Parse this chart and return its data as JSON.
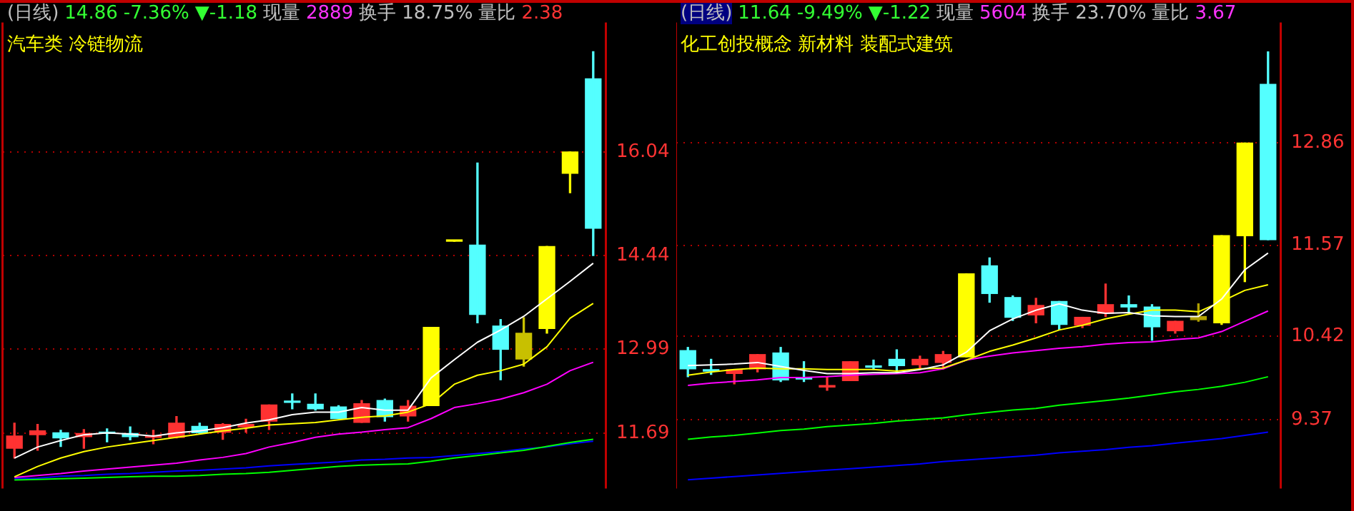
{
  "chart_data": [
    {
      "type": "candlestick",
      "title": "(日线)",
      "subtitle": "汽车类 冷链物流",
      "annotations": [
        "14.86",
        "-7.36%",
        "▼-1.18",
        "现量",
        "2889",
        "换手",
        "18.75%",
        "量比",
        "2.38"
      ],
      "categories": [
        null,
        null,
        null,
        null,
        null,
        null,
        null,
        null,
        null,
        null,
        null,
        null,
        null,
        null,
        null,
        null,
        null,
        null,
        null,
        null,
        null,
        null,
        null,
        null,
        null,
        null
      ],
      "ohlc": [
        [
          11.46,
          11.85,
          11.31,
          11.65
        ],
        [
          11.67,
          11.83,
          11.43,
          11.73
        ],
        [
          11.7,
          11.74,
          11.49,
          11.62
        ],
        [
          11.64,
          11.75,
          11.46,
          11.69
        ],
        [
          11.7,
          11.76,
          11.56,
          11.69
        ],
        [
          11.69,
          11.79,
          11.59,
          11.64
        ],
        [
          11.63,
          11.74,
          11.53,
          11.65
        ],
        [
          11.63,
          11.95,
          11.62,
          11.85
        ],
        [
          11.8,
          11.85,
          11.68,
          11.7
        ],
        [
          11.71,
          11.84,
          11.6,
          11.83
        ],
        [
          11.79,
          11.91,
          11.71,
          11.83
        ],
        [
          11.88,
          12.13,
          11.75,
          12.13
        ],
        [
          12.19,
          12.3,
          12.07,
          12.17
        ],
        [
          12.14,
          12.3,
          12.05,
          12.07
        ],
        [
          12.1,
          12.12,
          11.92,
          11.92
        ],
        [
          11.86,
          12.2,
          11.86,
          12.15
        ],
        [
          12.2,
          12.22,
          11.88,
          11.95
        ],
        [
          11.96,
          12.2,
          11.88,
          12.11
        ],
        [
          12.12,
          13.33,
          12.12,
          13.33
        ],
        [
          14.66,
          14.66,
          14.66,
          14.66
        ],
        [
          14.6,
          15.87,
          13.4,
          13.53
        ],
        [
          13.35,
          13.45,
          12.52,
          12.99
        ],
        [
          12.84,
          13.48,
          12.73,
          13.24
        ],
        [
          13.31,
          14.58,
          13.24,
          14.58
        ],
        [
          15.71,
          16.04,
          15.41,
          16.04
        ],
        [
          17.17,
          17.59,
          14.44,
          14.86
        ]
      ],
      "colors": [
        "#ff3232",
        "#ff3232",
        "#54ffff",
        "#ff3232",
        "#54ffff",
        "#54ffff",
        "#ff3232",
        "#ff3232",
        "#54ffff",
        "#ff3232",
        "#ff3232",
        "#ff3232",
        "#54ffff",
        "#54ffff",
        "#54ffff",
        "#ff3232",
        "#54ffff",
        "#ff3232",
        "#ffff00",
        "#ffff00",
        "#54ffff",
        "#54ffff",
        "#c8c000",
        "#ffff00",
        "#ffff00",
        "#54ffff"
      ],
      "series": [
        {
          "type": "line",
          "color": "#ffffff",
          "values": [
            11.31,
            11.48,
            11.58,
            11.67,
            11.7,
            11.68,
            11.65,
            11.7,
            11.73,
            11.78,
            11.85,
            11.9,
            11.98,
            12.02,
            12.02,
            12.09,
            12.05,
            12.05,
            12.55,
            12.83,
            13.1,
            13.29,
            13.5,
            13.77,
            14.04,
            14.32
          ]
        },
        {
          "type": "line",
          "color": "#ffff00",
          "values": [
            11.02,
            11.18,
            11.31,
            11.41,
            11.48,
            11.53,
            11.58,
            11.63,
            11.68,
            11.73,
            11.77,
            11.82,
            11.84,
            11.86,
            11.9,
            11.94,
            11.96,
            12.02,
            12.15,
            12.45,
            12.59,
            12.66,
            12.76,
            13.03,
            13.47,
            13.7
          ]
        },
        {
          "type": "line",
          "color": "#ff00ff",
          "values": [
            11.01,
            11.04,
            11.07,
            11.11,
            11.14,
            11.17,
            11.2,
            11.23,
            11.28,
            11.32,
            11.38,
            11.48,
            11.55,
            11.63,
            11.68,
            11.71,
            11.75,
            11.78,
            11.92,
            12.09,
            12.15,
            12.22,
            12.32,
            12.45,
            12.66,
            12.79
          ]
        },
        {
          "type": "line",
          "color": "#00ff00",
          "values": [
            10.97,
            10.98,
            10.99,
            11.0,
            11.01,
            11.02,
            11.03,
            11.03,
            11.04,
            11.06,
            11.07,
            11.09,
            11.12,
            11.15,
            11.18,
            11.2,
            11.21,
            11.22,
            11.26,
            11.31,
            11.35,
            11.39,
            11.43,
            11.49,
            11.55,
            11.6
          ]
        },
        {
          "type": "line",
          "color": "#0000ff",
          "values": [
            10.99,
            11.0,
            11.03,
            11.04,
            11.06,
            11.07,
            11.09,
            11.11,
            11.12,
            11.14,
            11.16,
            11.19,
            11.21,
            11.23,
            11.25,
            11.28,
            11.29,
            11.31,
            11.32,
            11.35,
            11.38,
            11.41,
            11.45,
            11.48,
            11.53,
            11.57
          ]
        }
      ],
      "ylim": [
        10.84,
        18.04
      ],
      "yticks": [
        11.69,
        12.99,
        14.44,
        16.04
      ],
      "grid": "y"
    },
    {
      "type": "candlestick",
      "title": "(日线)",
      "subtitle": "化工创投概念 新材料 装配式建筑",
      "annotations": [
        "11.64",
        "-9.49%",
        "▼-1.22",
        "现量",
        "5604",
        "换手",
        "23.70%",
        "量比",
        "3.67"
      ],
      "categories": [
        null,
        null,
        null,
        null,
        null,
        null,
        null,
        null,
        null,
        null,
        null,
        null,
        null,
        null,
        null,
        null,
        null,
        null,
        null,
        null,
        null,
        null,
        null,
        null,
        null,
        null
      ],
      "ohlc": [
        [
          10.24,
          10.28,
          9.91,
          10.01
        ],
        [
          10.0,
          10.13,
          9.94,
          9.98
        ],
        [
          9.95,
          10.0,
          9.82,
          10.0
        ],
        [
          10.01,
          10.19,
          9.97,
          10.19
        ],
        [
          10.21,
          10.28,
          9.85,
          9.87
        ],
        [
          9.9,
          10.1,
          9.85,
          9.88
        ],
        [
          9.78,
          9.91,
          9.74,
          9.8
        ],
        [
          9.86,
          10.1,
          9.86,
          10.1
        ],
        [
          10.04,
          10.12,
          10.0,
          10.03
        ],
        [
          10.13,
          10.25,
          9.96,
          10.05
        ],
        [
          10.06,
          10.17,
          10.02,
          10.13
        ],
        [
          10.09,
          10.23,
          10.01,
          10.19
        ],
        [
          10.16,
          11.21,
          10.16,
          11.21
        ],
        [
          11.31,
          11.41,
          10.85,
          10.96
        ],
        [
          10.91,
          10.93,
          10.62,
          10.66
        ],
        [
          10.69,
          10.9,
          10.59,
          10.81
        ],
        [
          10.86,
          10.86,
          10.5,
          10.57
        ],
        [
          10.56,
          10.66,
          10.53,
          10.66
        ],
        [
          10.71,
          11.08,
          10.67,
          10.82
        ],
        [
          10.82,
          10.93,
          10.71,
          10.79
        ],
        [
          10.79,
          10.82,
          10.37,
          10.54
        ],
        [
          10.49,
          10.61,
          10.46,
          10.61
        ],
        [
          10.63,
          10.83,
          10.61,
          10.67
        ],
        [
          10.59,
          11.69,
          10.57,
          11.69
        ],
        [
          11.69,
          12.86,
          11.11,
          12.86
        ],
        [
          13.6,
          14.01,
          11.64,
          11.64
        ]
      ],
      "colors": [
        "#54ffff",
        "#54ffff",
        "#ff3232",
        "#ff3232",
        "#54ffff",
        "#54ffff",
        "#ff3232",
        "#ff3232",
        "#54ffff",
        "#54ffff",
        "#ff3232",
        "#ff3232",
        "#ffff00",
        "#54ffff",
        "#54ffff",
        "#ff3232",
        "#54ffff",
        "#ff3232",
        "#ff3232",
        "#54ffff",
        "#54ffff",
        "#ff3232",
        "#b0a000",
        "#ffff00",
        "#ffff00",
        "#54ffff"
      ],
      "series": [
        {
          "type": "line",
          "color": "#ffffff",
          "values": [
            10.05,
            10.06,
            10.07,
            10.09,
            10.04,
            9.99,
            9.95,
            9.95,
            9.96,
            9.96,
            10.0,
            10.06,
            10.22,
            10.49,
            10.64,
            10.75,
            10.83,
            10.75,
            10.71,
            10.72,
            10.68,
            10.67,
            10.67,
            10.89,
            11.26,
            11.47
          ]
        },
        {
          "type": "line",
          "color": "#ffff00",
          "values": [
            9.93,
            9.97,
            10.0,
            10.02,
            10.01,
            10.01,
            10.0,
            10.0,
            10.0,
            9.98,
            10.01,
            10.02,
            10.12,
            10.23,
            10.31,
            10.4,
            10.5,
            10.56,
            10.64,
            10.7,
            10.75,
            10.75,
            10.73,
            10.86,
            11.0,
            11.07
          ]
        },
        {
          "type": "line",
          "color": "#ff00ff",
          "values": [
            9.8,
            9.83,
            9.85,
            9.87,
            9.9,
            9.9,
            9.91,
            9.93,
            9.94,
            9.95,
            9.96,
            10.01,
            10.12,
            10.17,
            10.21,
            10.24,
            10.27,
            10.29,
            10.32,
            10.34,
            10.35,
            10.38,
            10.4,
            10.48,
            10.61,
            10.74
          ]
        },
        {
          "type": "line",
          "color": "#00ff00",
          "values": [
            9.12,
            9.15,
            9.17,
            9.2,
            9.23,
            9.25,
            9.28,
            9.3,
            9.32,
            9.35,
            9.37,
            9.39,
            9.43,
            9.46,
            9.49,
            9.51,
            9.55,
            9.58,
            9.61,
            9.64,
            9.68,
            9.72,
            9.75,
            9.79,
            9.84,
            9.91
          ]
        },
        {
          "type": "line",
          "color": "#0000ff",
          "values": [
            8.61,
            8.63,
            8.65,
            8.67,
            8.69,
            8.71,
            8.73,
            8.75,
            8.77,
            8.79,
            8.81,
            8.84,
            8.86,
            8.88,
            8.9,
            8.92,
            8.95,
            8.97,
            8.99,
            9.02,
            9.04,
            9.07,
            9.1,
            9.13,
            9.17,
            9.21
          ]
        }
      ],
      "ylim": [
        8.5,
        14.38
      ],
      "yticks": [
        9.37,
        10.42,
        11.57,
        12.86
      ],
      "grid": "y"
    }
  ]
}
